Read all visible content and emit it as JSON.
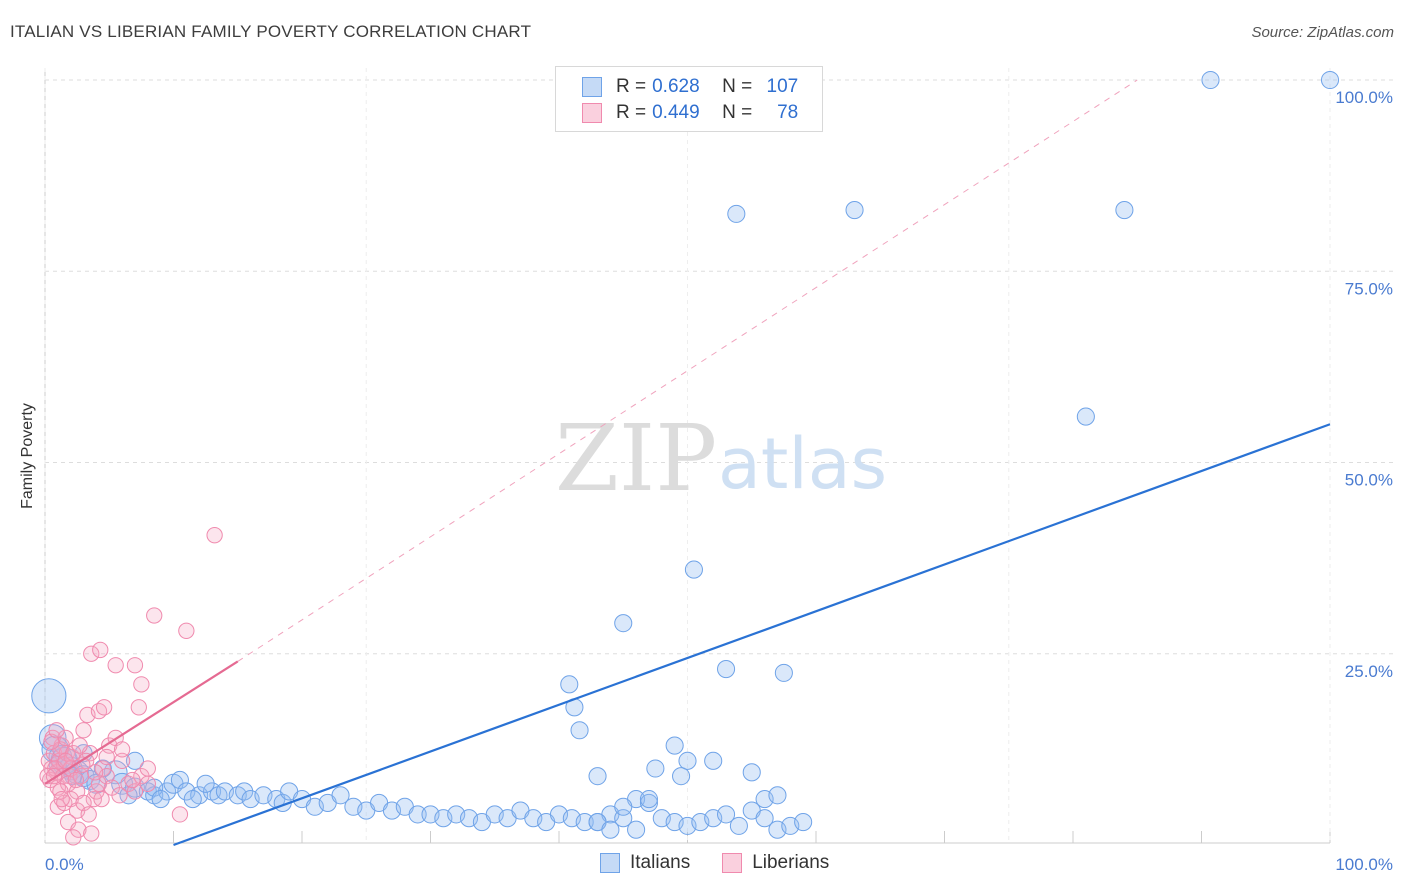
{
  "title": "ITALIAN VS LIBERIAN FAMILY POVERTY CORRELATION CHART",
  "source": "Source: ZipAtlas.com",
  "watermark": {
    "zip": "ZIP",
    "atlas": "atlas"
  },
  "legend": {
    "rows": [
      {
        "r_label": "R =",
        "r_value": "0.628",
        "n_label": "N =",
        "n_value": "107"
      },
      {
        "r_label": "R =",
        "r_value": "0.449",
        "n_label": "N =",
        "n_value": "78"
      }
    ]
  },
  "bottom_legend": {
    "italians": "Italians",
    "liberians": "Liberians"
  },
  "chart_data": {
    "type": "scatter",
    "title": "ITALIAN VS LIBERIAN FAMILY POVERTY CORRELATION CHART",
    "ylabel": "Family Poverty",
    "xlabel": "",
    "xlim": [
      0,
      100
    ],
    "ylim": [
      0,
      100
    ],
    "y_ticks": [
      {
        "value": 25,
        "label": "25.0%"
      },
      {
        "value": 50,
        "label": "50.0%"
      },
      {
        "value": 75,
        "label": "75.0%"
      },
      {
        "value": 100,
        "label": "100.0%"
      }
    ],
    "x_tick_labels": [
      {
        "value": 0,
        "label": "0.0%"
      },
      {
        "value": 100,
        "label": "100.0%"
      }
    ],
    "grid": true,
    "legend_position": "top-center",
    "colors": {
      "italians": "#6fa3e8",
      "italians_line": "#2a72d4",
      "liberians": "#f08aae",
      "liberians_line": "#e56a92"
    },
    "series": [
      {
        "name": "Italians",
        "r": 0.628,
        "n": 107,
        "trend": {
          "x": [
            10,
            100
          ],
          "y": [
            0,
            55
          ]
        },
        "points": [
          [
            0.3,
            19.5,
            18
          ],
          [
            0.6,
            14,
            14
          ],
          [
            0.8,
            12.5,
            14
          ],
          [
            1.2,
            11.5,
            12
          ],
          [
            1.5,
            11,
            14
          ],
          [
            2,
            10,
            12
          ],
          [
            2.5,
            9.5,
            12
          ],
          [
            3,
            9,
            11
          ],
          [
            3.5,
            8.5,
            10
          ],
          [
            4,
            8,
            10
          ],
          [
            5.5,
            9.5,
            12
          ],
          [
            6,
            8,
            11
          ],
          [
            7,
            7.5,
            10
          ],
          [
            8,
            7,
            9
          ],
          [
            8.5,
            6.5,
            9
          ],
          [
            9.5,
            7,
            9
          ],
          [
            10,
            8,
            10
          ],
          [
            10.5,
            8.5,
            9
          ],
          [
            11,
            7,
            9
          ],
          [
            12,
            6.5,
            9
          ],
          [
            13,
            7,
            9
          ],
          [
            13.5,
            6.5,
            9
          ],
          [
            14,
            7,
            9
          ],
          [
            15,
            6.5,
            9
          ],
          [
            15.5,
            7,
            9
          ],
          [
            16,
            6,
            9
          ],
          [
            17,
            6.5,
            9
          ],
          [
            18,
            6,
            9
          ],
          [
            18.5,
            5.5,
            9
          ],
          [
            19,
            7,
            9
          ],
          [
            20,
            6,
            9
          ],
          [
            21,
            5,
            9
          ],
          [
            22,
            5.5,
            9
          ],
          [
            23,
            6.5,
            9
          ],
          [
            24,
            5,
            9
          ],
          [
            25,
            4.5,
            9
          ],
          [
            26,
            5.5,
            9
          ],
          [
            27,
            4.5,
            9
          ],
          [
            28,
            5,
            9
          ],
          [
            29,
            4,
            9
          ],
          [
            30,
            4,
            9
          ],
          [
            31,
            3.5,
            9
          ],
          [
            32,
            4,
            9
          ],
          [
            33,
            3.5,
            9
          ],
          [
            34,
            3,
            9
          ],
          [
            35,
            4,
            9
          ],
          [
            36,
            3.5,
            9
          ],
          [
            37,
            4.5,
            9
          ],
          [
            38,
            3.5,
            9
          ],
          [
            39,
            3,
            9
          ],
          [
            40,
            4,
            9
          ],
          [
            41,
            3.5,
            9
          ],
          [
            42,
            3,
            9
          ],
          [
            43,
            3,
            9
          ],
          [
            44,
            4,
            9
          ],
          [
            45,
            3.5,
            9
          ],
          [
            46,
            6,
            9
          ],
          [
            47,
            5.5,
            9
          ],
          [
            48,
            3.5,
            9
          ],
          [
            49,
            3,
            9
          ],
          [
            50,
            2.5,
            9
          ],
          [
            51,
            3,
            9
          ],
          [
            52,
            3.5,
            9
          ],
          [
            53,
            4,
            9
          ],
          [
            54,
            2.5,
            9
          ],
          [
            55,
            4.5,
            9
          ],
          [
            56,
            6,
            9
          ],
          [
            57,
            2,
            9
          ],
          [
            58,
            2.5,
            9
          ],
          [
            59,
            3,
            9
          ],
          [
            7,
            11,
            9
          ],
          [
            8.5,
            7.5,
            9
          ],
          [
            4.5,
            10,
            9
          ],
          [
            3,
            12,
            9
          ],
          [
            1,
            10.5,
            9
          ],
          [
            2.2,
            9,
            9
          ],
          [
            6.5,
            6.5,
            9
          ],
          [
            9,
            6,
            9
          ],
          [
            11.5,
            6,
            9
          ],
          [
            12.5,
            8,
            9
          ],
          [
            40.8,
            21,
            9
          ],
          [
            41.2,
            18,
            9
          ],
          [
            41.6,
            15,
            9
          ],
          [
            45,
            29,
            9
          ],
          [
            47.5,
            10,
            9
          ],
          [
            49,
            13,
            9
          ],
          [
            50,
            11,
            9
          ],
          [
            43,
            9,
            9
          ],
          [
            45,
            5,
            9
          ],
          [
            47,
            6,
            9
          ],
          [
            49.5,
            9,
            9
          ],
          [
            50.5,
            36,
            9
          ],
          [
            52,
            11,
            9
          ],
          [
            53,
            23,
            9
          ],
          [
            55,
            9.5,
            9
          ],
          [
            56,
            3.5,
            9
          ],
          [
            57,
            6.5,
            9
          ],
          [
            57.5,
            22.5,
            9
          ],
          [
            53.8,
            82.5,
            9
          ],
          [
            63,
            83,
            9
          ],
          [
            84,
            83,
            9
          ],
          [
            81,
            56,
            9
          ],
          [
            90.7,
            100,
            9
          ],
          [
            100,
            100,
            9
          ],
          [
            43,
            3,
            9
          ],
          [
            44,
            2,
            9
          ],
          [
            46,
            2,
            9
          ]
        ]
      },
      {
        "name": "Liberians",
        "r": 0.449,
        "n": 78,
        "trend": {
          "x": [
            0,
            15
          ],
          "y": [
            8,
            24
          ]
        },
        "trend_extended": {
          "x": [
            15,
            85
          ],
          "y": [
            24,
            100
          ]
        },
        "points": [
          [
            0.3,
            11,
            9
          ],
          [
            0.5,
            10,
            9
          ],
          [
            0.7,
            12,
            9
          ],
          [
            0.9,
            9.5,
            9
          ],
          [
            1.1,
            11,
            9
          ],
          [
            1.3,
            13,
            9
          ],
          [
            1.5,
            10.5,
            9
          ],
          [
            1.7,
            12,
            9
          ],
          [
            1.9,
            9,
            9
          ],
          [
            2.1,
            11.5,
            9
          ],
          [
            0.4,
            8.5,
            9
          ],
          [
            0.6,
            14,
            9
          ],
          [
            0.8,
            10,
            9
          ],
          [
            1,
            7.5,
            9
          ],
          [
            1.2,
            12.5,
            9
          ],
          [
            1.4,
            9,
            9
          ],
          [
            1.6,
            14,
            9
          ],
          [
            1.8,
            8,
            9
          ],
          [
            2,
            10,
            9
          ],
          [
            2.2,
            12,
            9
          ],
          [
            2.5,
            7,
            9
          ],
          [
            2.8,
            9,
            9
          ],
          [
            3,
            15,
            9
          ],
          [
            3.3,
            17,
            9
          ],
          [
            3.5,
            12,
            9
          ],
          [
            3.8,
            6,
            9
          ],
          [
            4,
            7,
            9
          ],
          [
            4.2,
            8,
            9
          ],
          [
            4.5,
            10,
            9
          ],
          [
            4.8,
            9,
            9
          ],
          [
            1,
            5,
            9
          ],
          [
            1.5,
            5.5,
            9
          ],
          [
            2,
            6,
            9
          ],
          [
            2.5,
            4.5,
            9
          ],
          [
            3,
            5.5,
            9
          ],
          [
            1.8,
            3,
            9
          ],
          [
            2.6,
            2,
            9
          ],
          [
            3.4,
            4,
            9
          ],
          [
            2.2,
            1,
            9
          ],
          [
            3.6,
            1.5,
            9
          ],
          [
            4.2,
            17.5,
            9
          ],
          [
            4.6,
            18,
            9
          ],
          [
            5,
            13,
            9
          ],
          [
            5.5,
            14,
            9
          ],
          [
            6,
            11,
            9
          ],
          [
            6.5,
            8,
            9
          ],
          [
            7,
            7,
            9
          ],
          [
            7.5,
            9,
            9
          ],
          [
            8,
            8,
            9
          ],
          [
            3.6,
            25,
            9
          ],
          [
            4.3,
            25.5,
            9
          ],
          [
            5.5,
            23.5,
            9
          ],
          [
            7,
            23.5,
            9
          ],
          [
            7.5,
            21,
            9
          ],
          [
            7.3,
            18,
            9
          ],
          [
            8.5,
            30,
            9
          ],
          [
            11,
            28,
            9
          ],
          [
            13.2,
            40.5,
            9
          ],
          [
            10.5,
            4,
            9
          ],
          [
            5.2,
            7.5,
            9
          ],
          [
            6,
            12.5,
            9
          ],
          [
            8,
            10,
            9
          ],
          [
            4.8,
            11.5,
            9
          ],
          [
            0.2,
            9,
            9
          ],
          [
            0.5,
            13.5,
            9
          ],
          [
            1.2,
            7,
            9
          ],
          [
            2.7,
            13,
            9
          ],
          [
            3.2,
            11,
            9
          ],
          [
            0.9,
            15,
            9
          ],
          [
            1.6,
            11,
            9
          ],
          [
            2.4,
            8.5,
            9
          ],
          [
            3.9,
            9.5,
            9
          ],
          [
            5.8,
            6.5,
            9
          ],
          [
            6.8,
            8.5,
            9
          ],
          [
            4.4,
            6,
            9
          ],
          [
            2.9,
            10.5,
            9
          ],
          [
            1.3,
            6,
            9
          ],
          [
            0.7,
            9,
            9
          ]
        ]
      }
    ]
  }
}
